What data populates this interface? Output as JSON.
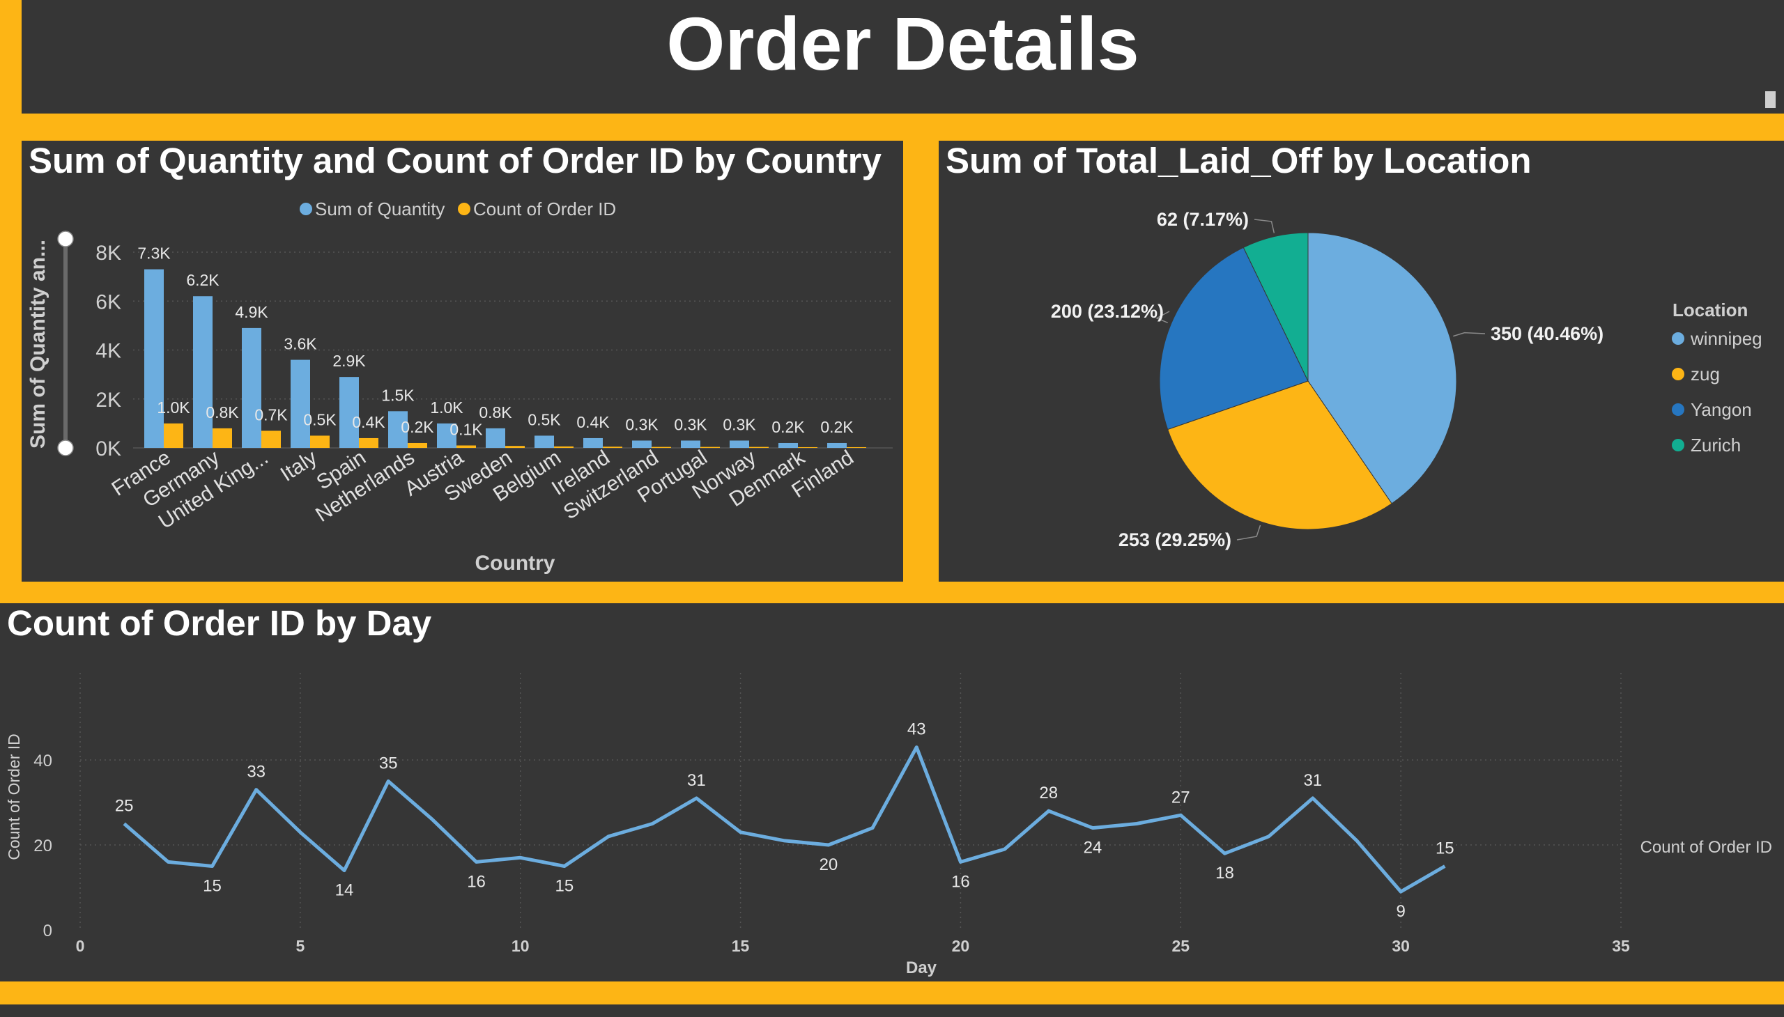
{
  "page": {
    "title": "Order Details"
  },
  "colors": {
    "background": "#fdb515",
    "panel": "#363636",
    "blue": "#6caddf",
    "orange": "#fdb515",
    "dark_blue": "#2676c0",
    "teal": "#12ae92"
  },
  "chart_data": [
    {
      "type": "bar",
      "title": "Sum of Quantity and Count of Order ID by Country",
      "xlabel": "Country",
      "ylabel": "Sum of Quantity an...",
      "ylim": [
        0,
        8000
      ],
      "yticks": [
        "0K",
        "2K",
        "4K",
        "6K",
        "8K"
      ],
      "categories": [
        "France",
        "Germany",
        "United King...",
        "Italy",
        "Spain",
        "Netherlands",
        "Austria",
        "Sweden",
        "Belgium",
        "Ireland",
        "Switzerland",
        "Portugal",
        "Norway",
        "Denmark",
        "Finland"
      ],
      "series": [
        {
          "name": "Sum of Quantity",
          "color": "#6caddf",
          "values": [
            7300,
            6200,
            4900,
            3600,
            2900,
            1500,
            1000,
            800,
            500,
            400,
            300,
            300,
            300,
            200,
            200
          ],
          "labels": [
            "7.3K",
            "6.2K",
            "4.9K",
            "3.6K",
            "2.9K",
            "1.5K",
            "1.0K",
            "0.8K",
            "0.5K",
            "0.4K",
            "0.3K",
            "0.3K",
            "0.3K",
            "0.2K",
            "0.2K"
          ]
        },
        {
          "name": "Count of Order ID",
          "color": "#fdb515",
          "values": [
            1000,
            800,
            700,
            500,
            400,
            200,
            100,
            80,
            60,
            50,
            40,
            40,
            40,
            30,
            30
          ],
          "labels": [
            "1.0K",
            "0.8K",
            "0.7K",
            "0.5K",
            "0.4K",
            "0.2K",
            "0.1K",
            "",
            "",
            "",
            "",
            "",
            "",
            "",
            ""
          ]
        }
      ],
      "grid": true,
      "legend": "top"
    },
    {
      "type": "pie",
      "title": "Sum of Total_Laid_Off by Location",
      "legend_title": "Location",
      "legend": "right",
      "slices": [
        {
          "label": "winnipeg",
          "value": 350,
          "percent": "40.46%",
          "data_label": "350 (40.46%)",
          "color": "#6caddf"
        },
        {
          "label": "zug",
          "value": 253,
          "percent": "29.25%",
          "data_label": "253 (29.25%)",
          "color": "#fdb515"
        },
        {
          "label": "Yangon",
          "value": 200,
          "percent": "23.12%",
          "data_label": "200 (23.12%)",
          "color": "#2676c0"
        },
        {
          "label": "Zurich",
          "value": 62,
          "percent": "7.17%",
          "data_label": "62 (7.17%)",
          "color": "#12ae92"
        }
      ]
    },
    {
      "type": "line",
      "title": "Count of Order ID by Day",
      "xlabel": "Day",
      "ylabel": "Count of Order ID",
      "legend_label": "Count of Order ID",
      "legend": "right",
      "xlim": [
        0,
        35
      ],
      "ylim": [
        0,
        50
      ],
      "xticks": [
        0,
        5,
        10,
        15,
        20,
        25,
        30,
        35
      ],
      "yticks": [
        0,
        20,
        40
      ],
      "grid": true,
      "series": [
        {
          "name": "Count of Order ID",
          "color": "#6caddf",
          "x": [
            1,
            2,
            3,
            4,
            5,
            6,
            7,
            8,
            9,
            10,
            11,
            12,
            13,
            14,
            15,
            16,
            17,
            18,
            19,
            20,
            21,
            22,
            23,
            24,
            25,
            26,
            27,
            28,
            29,
            30,
            31
          ],
          "y": [
            25,
            16,
            15,
            33,
            23,
            14,
            35,
            26,
            16,
            17,
            15,
            22,
            25,
            31,
            23,
            21,
            20,
            24,
            43,
            16,
            19,
            28,
            24,
            25,
            27,
            18,
            22,
            31,
            21,
            9,
            15
          ]
        }
      ],
      "point_labels": [
        {
          "day": 1,
          "label": "25",
          "pos": "above"
        },
        {
          "day": 3,
          "label": "15",
          "pos": "below"
        },
        {
          "day": 4,
          "label": "33",
          "pos": "above"
        },
        {
          "day": 6,
          "label": "14",
          "pos": "below"
        },
        {
          "day": 7,
          "label": "35",
          "pos": "above"
        },
        {
          "day": 9,
          "label": "16",
          "pos": "below"
        },
        {
          "day": 11,
          "label": "15",
          "pos": "below"
        },
        {
          "day": 14,
          "label": "31",
          "pos": "above"
        },
        {
          "day": 17,
          "label": "20",
          "pos": "below"
        },
        {
          "day": 19,
          "label": "43",
          "pos": "above"
        },
        {
          "day": 20,
          "label": "16",
          "pos": "below"
        },
        {
          "day": 22,
          "label": "28",
          "pos": "above"
        },
        {
          "day": 23,
          "label": "24",
          "pos": "below"
        },
        {
          "day": 25,
          "label": "27",
          "pos": "above"
        },
        {
          "day": 26,
          "label": "18",
          "pos": "below"
        },
        {
          "day": 28,
          "label": "31",
          "pos": "above"
        },
        {
          "day": 30,
          "label": "9",
          "pos": "below"
        },
        {
          "day": 31,
          "label": "15",
          "pos": "above"
        }
      ]
    }
  ]
}
